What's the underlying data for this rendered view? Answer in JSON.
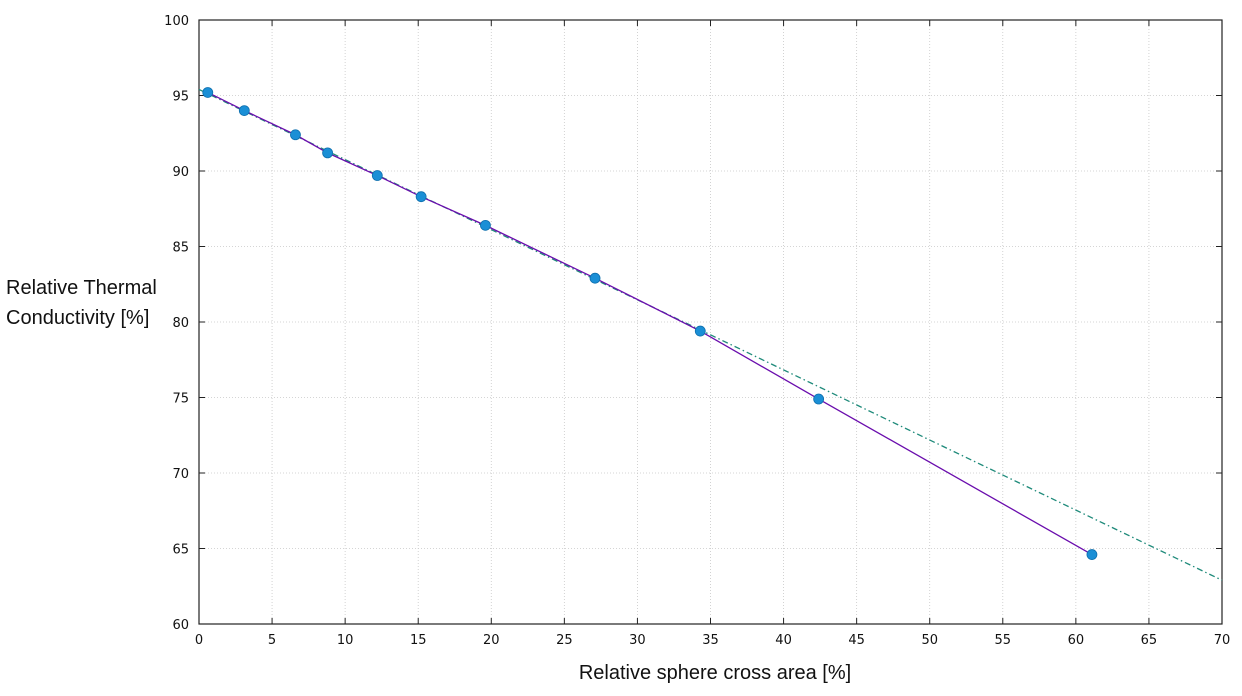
{
  "chart_data": {
    "type": "scatter",
    "title": "",
    "xlabel": "Relative sphere cross area [%]",
    "ylabel_lines": [
      "Relative Thermal",
      "Conductivity [%]"
    ],
    "xlim": [
      0,
      70
    ],
    "ylim": [
      60,
      100
    ],
    "xticks": [
      0,
      5,
      10,
      15,
      20,
      25,
      30,
      35,
      40,
      45,
      50,
      55,
      60,
      65,
      70
    ],
    "yticks": [
      60,
      65,
      70,
      75,
      80,
      85,
      90,
      95,
      100
    ],
    "grid": true,
    "series": [
      {
        "kind": "markers",
        "color": "#1a8fd6",
        "x": [
          0.6,
          3.1,
          6.6,
          8.8,
          12.2,
          15.2,
          19.6,
          27.1,
          34.3,
          42.4,
          61.1
        ],
        "y": [
          95.2,
          94.0,
          92.4,
          91.2,
          89.7,
          88.3,
          86.4,
          82.9,
          79.4,
          74.9,
          64.6
        ]
      },
      {
        "kind": "line",
        "color": "#6a0dad",
        "x": [
          0.6,
          3.1,
          6.6,
          8.8,
          12.2,
          15.2,
          19.6,
          27.1,
          34.3,
          42.4,
          61.1
        ],
        "y": [
          95.2,
          94.0,
          92.4,
          91.2,
          89.7,
          88.3,
          86.4,
          82.9,
          79.4,
          74.9,
          64.6
        ]
      },
      {
        "kind": "dashdot",
        "color": "#1e8a7a",
        "x": [
          0,
          70
        ],
        "y": [
          95.4,
          62.9
        ]
      }
    ]
  }
}
